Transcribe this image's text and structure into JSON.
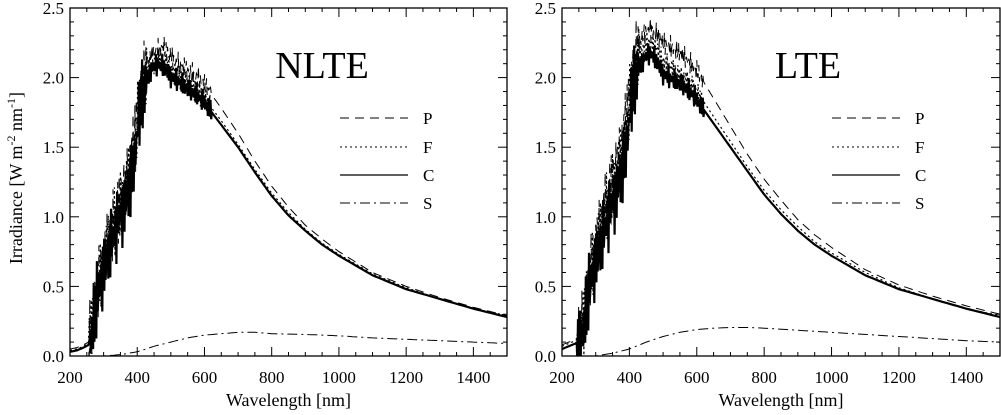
{
  "figure": {
    "ylabel_main": "Irradiance [W m",
    "ylabel_sup1": "-2",
    "ylabel_mid": " nm",
    "ylabel_sup2": "-1",
    "ylabel_end": "]"
  },
  "chart_data": [
    {
      "type": "line",
      "title": "NLTE",
      "xlabel": "Wavelength [nm]",
      "xlim": [
        200,
        1500
      ],
      "ylim": [
        0,
        2.5
      ],
      "xticks": [
        "200",
        "400",
        "600",
        "800",
        "1000",
        "1200",
        "1400"
      ],
      "yticks": [
        "0.0",
        "0.5",
        "1.0",
        "1.5",
        "2.0",
        "2.5"
      ],
      "legend_position": "right",
      "series": [
        {
          "name": "P",
          "style": "dashed",
          "x": [
            200,
            220,
            240,
            255,
            265,
            280,
            300,
            320,
            340,
            360,
            380,
            395,
            405,
            420,
            440,
            460,
            480,
            500,
            520,
            550,
            580,
            600,
            650,
            700,
            750,
            800,
            850,
            900,
            950,
            1000,
            1100,
            1200,
            1300,
            1400,
            1500
          ],
          "y": [
            0.05,
            0.06,
            0.08,
            0.1,
            0.22,
            0.5,
            0.7,
            0.9,
            1.05,
            1.2,
            1.4,
            1.6,
            1.9,
            2.05,
            2.15,
            2.2,
            2.22,
            2.15,
            2.1,
            2.05,
            2.0,
            1.95,
            1.78,
            1.6,
            1.4,
            1.22,
            1.07,
            0.94,
            0.84,
            0.75,
            0.6,
            0.5,
            0.42,
            0.35,
            0.29
          ]
        },
        {
          "name": "F",
          "style": "dotted",
          "x": [
            200,
            220,
            240,
            255,
            265,
            280,
            300,
            320,
            340,
            360,
            380,
            395,
            405,
            420,
            440,
            460,
            480,
            500,
            520,
            550,
            580,
            600,
            650,
            700,
            750,
            800,
            850,
            900,
            950,
            1000,
            1100,
            1200,
            1300,
            1400,
            1500
          ],
          "y": [
            0.04,
            0.05,
            0.07,
            0.1,
            0.2,
            0.46,
            0.65,
            0.85,
            1.0,
            1.12,
            1.32,
            1.52,
            1.82,
            1.98,
            2.08,
            2.12,
            2.13,
            2.06,
            2.01,
            1.96,
            1.9,
            1.85,
            1.69,
            1.52,
            1.34,
            1.17,
            1.03,
            0.91,
            0.81,
            0.73,
            0.59,
            0.49,
            0.41,
            0.34,
            0.29
          ]
        },
        {
          "name": "C",
          "style": "solid",
          "x": [
            200,
            220,
            240,
            255,
            265,
            280,
            300,
            320,
            340,
            360,
            380,
            395,
            405,
            420,
            440,
            460,
            480,
            500,
            520,
            550,
            580,
            600,
            650,
            700,
            750,
            800,
            850,
            900,
            950,
            1000,
            1100,
            1200,
            1300,
            1400,
            1500
          ],
          "y": [
            0.03,
            0.04,
            0.06,
            0.08,
            0.18,
            0.42,
            0.6,
            0.8,
            0.95,
            1.05,
            1.25,
            1.45,
            1.75,
            1.92,
            2.05,
            2.1,
            2.08,
            2.0,
            1.98,
            1.92,
            1.87,
            1.82,
            1.66,
            1.5,
            1.32,
            1.15,
            1.01,
            0.9,
            0.8,
            0.72,
            0.58,
            0.48,
            0.41,
            0.34,
            0.28
          ]
        },
        {
          "name": "S",
          "style": "dash-dot",
          "x": [
            200,
            300,
            350,
            400,
            450,
            500,
            550,
            600,
            650,
            700,
            750,
            800,
            900,
            1000,
            1100,
            1200,
            1300,
            1400,
            1500
          ],
          "y": [
            0.0,
            0.0,
            0.01,
            0.03,
            0.07,
            0.1,
            0.13,
            0.15,
            0.16,
            0.17,
            0.17,
            0.16,
            0.155,
            0.145,
            0.13,
            0.12,
            0.11,
            0.1,
            0.09
          ]
        }
      ]
    },
    {
      "type": "line",
      "title": "LTE",
      "xlabel": "Wavelength [nm]",
      "xlim": [
        200,
        1500
      ],
      "ylim": [
        0,
        2.5
      ],
      "xticks": [
        "200",
        "400",
        "600",
        "800",
        "1000",
        "1200",
        "1400"
      ],
      "yticks": [
        "0.0",
        "0.5",
        "1.0",
        "1.5",
        "2.0",
        "2.5"
      ],
      "legend_position": "right",
      "series": [
        {
          "name": "P",
          "style": "dashed",
          "x": [
            200,
            220,
            240,
            255,
            265,
            280,
            300,
            320,
            340,
            360,
            380,
            395,
            405,
            420,
            440,
            460,
            480,
            500,
            520,
            550,
            580,
            600,
            650,
            700,
            750,
            800,
            850,
            900,
            950,
            1000,
            1100,
            1200,
            1300,
            1400,
            1500
          ],
          "y": [
            0.08,
            0.1,
            0.12,
            0.15,
            0.3,
            0.58,
            0.8,
            1.0,
            1.2,
            1.35,
            1.55,
            1.75,
            2.05,
            2.2,
            2.3,
            2.35,
            2.32,
            2.25,
            2.22,
            2.18,
            2.1,
            2.05,
            1.85,
            1.65,
            1.45,
            1.27,
            1.12,
            0.98,
            0.87,
            0.78,
            0.62,
            0.51,
            0.43,
            0.36,
            0.3
          ]
        },
        {
          "name": "F",
          "style": "dotted",
          "x": [
            200,
            220,
            240,
            255,
            265,
            280,
            300,
            320,
            340,
            360,
            380,
            395,
            405,
            420,
            440,
            460,
            480,
            500,
            520,
            550,
            580,
            600,
            650,
            700,
            750,
            800,
            850,
            900,
            950,
            1000,
            1100,
            1200,
            1300,
            1400,
            1500
          ],
          "y": [
            0.07,
            0.09,
            0.11,
            0.14,
            0.27,
            0.54,
            0.74,
            0.94,
            1.12,
            1.26,
            1.46,
            1.65,
            1.95,
            2.12,
            2.22,
            2.26,
            2.22,
            2.12,
            2.08,
            2.02,
            1.96,
            1.9,
            1.72,
            1.54,
            1.36,
            1.19,
            1.05,
            0.93,
            0.82,
            0.74,
            0.6,
            0.49,
            0.41,
            0.34,
            0.29
          ]
        },
        {
          "name": "C",
          "style": "solid",
          "x": [
            200,
            220,
            240,
            255,
            265,
            280,
            300,
            320,
            340,
            360,
            380,
            395,
            405,
            420,
            440,
            460,
            480,
            500,
            520,
            550,
            580,
            600,
            650,
            700,
            750,
            800,
            850,
            900,
            950,
            1000,
            1100,
            1200,
            1300,
            1400,
            1500
          ],
          "y": [
            0.05,
            0.07,
            0.09,
            0.12,
            0.22,
            0.48,
            0.66,
            0.86,
            1.03,
            1.15,
            1.35,
            1.55,
            1.85,
            2.02,
            2.12,
            2.18,
            2.13,
            2.02,
            2.0,
            1.96,
            1.9,
            1.84,
            1.67,
            1.5,
            1.33,
            1.16,
            1.02,
            0.9,
            0.8,
            0.72,
            0.58,
            0.48,
            0.41,
            0.34,
            0.28
          ]
        },
        {
          "name": "S",
          "style": "dash-dot",
          "x": [
            200,
            300,
            350,
            400,
            450,
            500,
            550,
            600,
            650,
            700,
            750,
            800,
            900,
            1000,
            1100,
            1200,
            1300,
            1400,
            1500
          ],
          "y": [
            0.0,
            0.0,
            0.02,
            0.05,
            0.1,
            0.14,
            0.17,
            0.19,
            0.2,
            0.205,
            0.205,
            0.2,
            0.185,
            0.17,
            0.155,
            0.14,
            0.125,
            0.11,
            0.1
          ]
        }
      ]
    }
  ]
}
